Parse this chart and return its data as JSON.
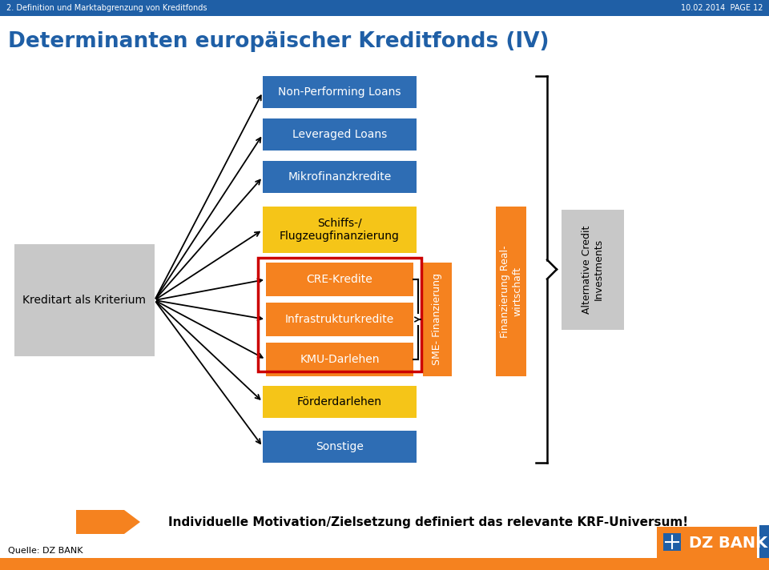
{
  "title": "Determinanten europäischer Kreditfonds (IV)",
  "header_left": "2. Definition und Marktabgrenzung von Kreditfonds",
  "header_right": "10.02.2014  PAGE 12",
  "header_bg": "#1f5fa6",
  "title_color": "#1f5fa6",
  "blue_boxes": [
    "Non-Performing Loans",
    "Leveraged Loans",
    "Mikrofinanzkredite",
    "Sonstige"
  ],
  "yellow_boxes": [
    "Schiffs-/\nFlugzeugfinanzierung",
    "Förderdarlehen"
  ],
  "orange_boxes": [
    "CRE-Kredite",
    "Infrastrukturkredite",
    "KMU-Darlehen"
  ],
  "left_box_text": "Kreditart als Kriterium",
  "sme_label": "SME- Finanzierung",
  "finanz_label": "Finanzierung Real-\nwirtschaft",
  "alt_credit_label": "Alternative Credit\nInvestments",
  "bottom_text": "Individuelle Motivation/Zielsetzung definiert das relevante KRF-Universum!",
  "source_text": "Quelle: DZ BANK",
  "blue_color": "#2e6db4",
  "orange_color": "#f5821f",
  "yellow_color": "#f5c518",
  "light_gray": "#c8c8c8",
  "red_border": "#cc0000",
  "footer_orange": "#f5821f",
  "dz_blue": "#1f5fa6",
  "white": "#ffffff",
  "black": "#000000"
}
